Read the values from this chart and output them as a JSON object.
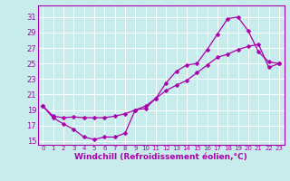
{
  "xlabel": "Windchill (Refroidissement éolien,°C)",
  "bg_color": "#c8ecec",
  "grid_color": "#ffffff",
  "line_color": "#aa00aa",
  "xlim": [
    -0.5,
    23.5
  ],
  "ylim": [
    14.5,
    32.5
  ],
  "yticks": [
    15,
    17,
    19,
    21,
    23,
    25,
    27,
    29,
    31
  ],
  "xticks": [
    0,
    1,
    2,
    3,
    4,
    5,
    6,
    7,
    8,
    9,
    10,
    11,
    12,
    13,
    14,
    15,
    16,
    17,
    18,
    19,
    20,
    21,
    22,
    23
  ],
  "curve1_x": [
    0,
    1,
    2,
    3,
    4,
    5,
    6,
    7,
    8,
    9,
    10,
    11,
    12,
    13,
    14,
    15,
    16,
    17,
    18,
    19,
    20,
    21,
    22,
    23
  ],
  "curve1_y": [
    19.5,
    18.0,
    17.2,
    16.5,
    15.5,
    15.2,
    15.5,
    15.5,
    16.0,
    19.0,
    19.2,
    20.5,
    22.5,
    24.0,
    24.8,
    25.0,
    26.8,
    28.8,
    30.8,
    31.0,
    29.2,
    26.5,
    25.2,
    25.0
  ],
  "curve2_x": [
    0,
    1,
    2,
    3,
    4,
    5,
    6,
    7,
    8,
    9,
    10,
    11,
    12,
    13,
    14,
    15,
    16,
    17,
    18,
    19,
    20,
    21,
    22,
    23
  ],
  "curve2_y": [
    19.5,
    18.2,
    18.0,
    18.1,
    18.0,
    18.0,
    18.0,
    18.2,
    18.5,
    19.0,
    19.5,
    20.5,
    21.5,
    22.2,
    22.8,
    23.8,
    24.8,
    25.8,
    26.2,
    26.8,
    27.2,
    27.5,
    24.5,
    25.0
  ],
  "font_size_ticks_x": 5.0,
  "font_size_ticks_y": 6.0,
  "font_size_xlabel": 6.5,
  "tick_color": "#aa00aa",
  "spine_color": "#aa00aa",
  "marker_size": 2.5,
  "line_width": 0.9
}
